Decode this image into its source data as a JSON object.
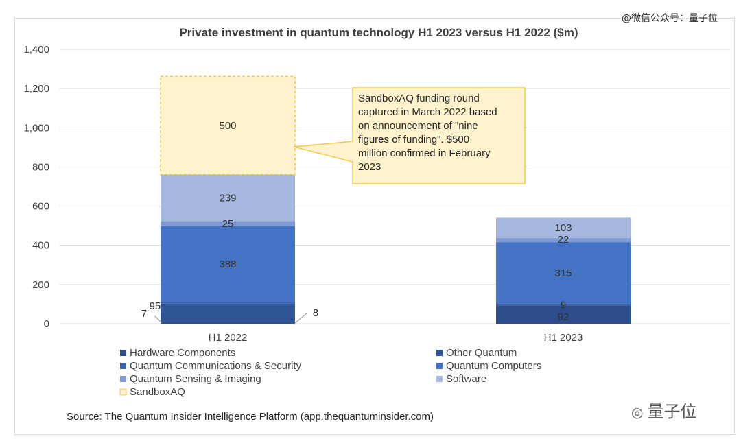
{
  "watermark_top": "@微信公众号：量子位",
  "watermark_bottom": "量子位",
  "colors": {
    "hardware": "#2e4d8c",
    "other_quantum": "#2f5597",
    "comms": "#3a62ad",
    "computers": "#4472c4",
    "sensing": "#7f9bd6",
    "software": "#a7b8e0",
    "sandbox": "#fff2cc",
    "sandbox_border": "#f2c94c",
    "grid": "#d9d9d9",
    "text": "#404040"
  },
  "chart_data": {
    "type": "bar",
    "stacked": true,
    "title": "Private investment in quantum technology H1 2023 versus H1 2022 ($m)",
    "categories": [
      "H1 2022",
      "H1 2023"
    ],
    "ylim": [
      0,
      1400
    ],
    "yticks": [
      "0",
      "200",
      "400",
      "600",
      "800",
      "1,000",
      "1,200",
      "1,400"
    ],
    "grid": true,
    "series": [
      {
        "name": "Hardware Components",
        "key": "hardware",
        "values": [
          7,
          92
        ],
        "labels": [
          "7",
          "92"
        ]
      },
      {
        "name": "Other Quantum",
        "key": "other_quantum",
        "values": [
          95,
          9
        ],
        "labels": [
          "95",
          "9"
        ]
      },
      {
        "name": "Quantum Communications & Security",
        "key": "comms",
        "values": [
          8,
          0
        ],
        "labels": [
          "8",
          ""
        ]
      },
      {
        "name": "Quantum Computers",
        "key": "computers",
        "values": [
          388,
          315
        ],
        "labels": [
          "388",
          "315"
        ]
      },
      {
        "name": "Quantum Sensing & Imaging",
        "key": "sensing",
        "values": [
          25,
          22
        ],
        "labels": [
          "25",
          "22"
        ]
      },
      {
        "name": "Software",
        "key": "software",
        "values": [
          239,
          103
        ],
        "labels": [
          "239",
          "103"
        ]
      },
      {
        "name": "SandboxAQ",
        "key": "sandbox",
        "values": [
          500,
          0
        ],
        "labels": [
          "500",
          ""
        ]
      }
    ],
    "annotation": "SandboxAQ funding round captured in March 2022 based on announcement of \"nine figures of funding\". $500 million confirmed in February 2023",
    "annotation_lines": [
      "SandboxAQ funding round",
      "captured in March 2022 based",
      "on announcement of \"nine",
      "figures of funding\". $500",
      "million confirmed in February",
      "2023"
    ],
    "legend_position": "bottom",
    "source": "Source: The Quantum Insider Intelligence Platform (app.thequantuminsider.com)"
  }
}
